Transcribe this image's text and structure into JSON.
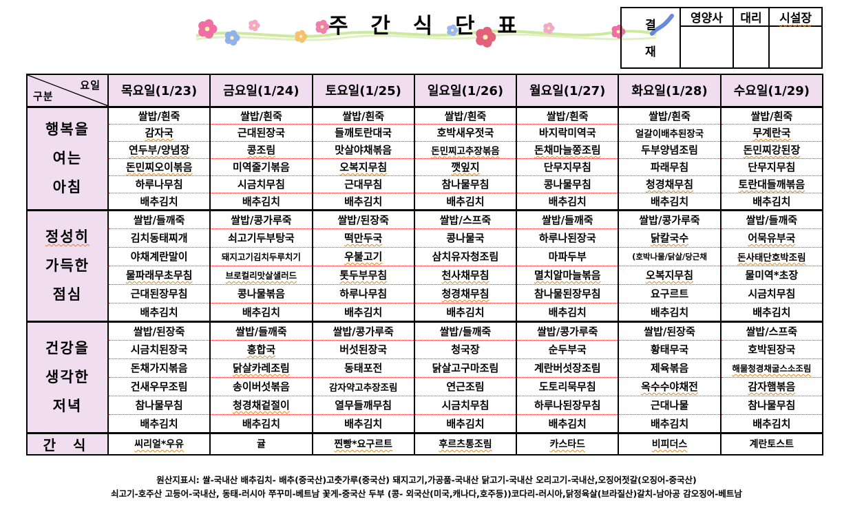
{
  "page": {
    "title": "주 간  식 단 표"
  },
  "approval": {
    "stamp": [
      "결",
      "재"
    ],
    "columns": [
      "영양사",
      "대리",
      "시설장"
    ]
  },
  "menu": {
    "corner": {
      "top": "요일",
      "bottom": "구분"
    },
    "day_headers": [
      "목요일(1/23)",
      "금요일(1/24)",
      "토요일(1/25)",
      "일요일(1/26)",
      "월요일(1/27)",
      "화요일(1/28)",
      "수요일(1/29)"
    ],
    "sections": [
      {
        "label_lines": [
          "행복을",
          "여는",
          "아침"
        ],
        "days": [
          [
            "쌀밥/흰죽",
            "감자국",
            "연두부/양념장",
            "돈민찌오이볶음",
            "하루나무침",
            "배추김치"
          ],
          [
            "쌀밥/흰죽",
            "근대된장국",
            "콩조림",
            "미역줄기볶음",
            "시금치무침",
            "배추김치"
          ],
          [
            "쌀밥/흰죽",
            "들깨토란대국",
            "맛살야채볶음",
            "오복지무침",
            "근대무침",
            "배추김치"
          ],
          [
            "쌀밥/흰죽",
            "호박새우젓국",
            "돈민찌고추장볶음",
            "깻잎지",
            "참나물무침",
            "배추김치"
          ],
          [
            "쌀밥/흰죽",
            "바지락미역국",
            "돈채마늘쫑조림",
            "단무지무침",
            "콩나물무침",
            "배추김치"
          ],
          [
            "쌀밥/흰죽",
            "얼갈이배추된장국",
            "두부양념조림",
            "파래무침",
            "청경채무침",
            "배추김치"
          ],
          [
            "쌀밥/흰죽",
            "무계란국",
            "돈민찌강된장",
            "단무지무침",
            "토란대들깨볶음",
            "배추김치"
          ]
        ]
      },
      {
        "label_lines": [
          "정성히",
          "가득한",
          "점심"
        ],
        "days": [
          [
            "쌀밥/들깨죽",
            "김치동태찌개",
            "야채계란말이",
            "물파래무초무침",
            "근대된장무침",
            "배추김치"
          ],
          [
            "쌀밥/콩가루죽",
            "쇠고기두부탕국",
            "돼지고기김치두루치기",
            "브로컬리맛살샐러드",
            "콩나물볶음",
            "배추김치"
          ],
          [
            "쌀밥/된장죽",
            "떡만두국",
            "우불고기",
            "톳두부무침",
            "하루나무침",
            "배추김치"
          ],
          [
            "쌀밥/스프죽",
            "콩나물국",
            "삼치유자청조림",
            "천사채무침",
            "청경채무침",
            "배추김치"
          ],
          [
            "쌀밥/들깨죽",
            "하루나된장국",
            "마파두부",
            "멸치알마늘볶음",
            "참나물된장무침",
            "배추김치"
          ],
          [
            "쌀밥/콩가루죽",
            "닭칼국수",
            "(호박나물/닭살/당근채",
            "오복지무침",
            "요구르트",
            "배추김치"
          ],
          [
            "쌀밥/들깨죽",
            "어묵유부국",
            "돈사태단호박조림",
            "물미역*초장",
            "시금치무침",
            "배추김치"
          ]
        ]
      },
      {
        "label_lines": [
          "건강을",
          "생각한",
          "저녁"
        ],
        "days": [
          [
            "쌀밥/된장죽",
            "시금치된장국",
            "돈채가지볶음",
            "건새우무조림",
            "참나물무침",
            "배추김치"
          ],
          [
            "쌀밥/들깨죽",
            "홍합국",
            "닭살카레조림",
            "송이버섯볶음",
            "청경채겉절이",
            "배추김치"
          ],
          [
            "쌀밥/콩가루죽",
            "버섯된장국",
            "동태포전",
            "감자약고추장조림",
            "열무들깨무침",
            "배추김치"
          ],
          [
            "쌀밥/들깨죽",
            "청국장",
            "닭살고구마조림",
            "연근조림",
            "시금치무침",
            "배추김치"
          ],
          [
            "쌀밥/콩가루죽",
            "순두부국",
            "계란버섯장조림",
            "도토리묵무침",
            "하루나된장무침",
            "배추김치"
          ],
          [
            "쌀밥/된장죽",
            "황태무국",
            "제육볶음",
            "옥수수야채전",
            "근대나물",
            "배추김치"
          ],
          [
            "쌀밥/스프죽",
            "호박된장국",
            "해물청경채굴스소조림",
            "감자햄볶음",
            "참나물무침",
            "배추김치"
          ]
        ]
      }
    ],
    "snack": {
      "label": "간 식",
      "items": [
        "씨리얼*우유",
        "귤",
        "찐빵*요구르트",
        "후르츠통조림",
        "카스타드",
        "비피더스",
        "계란토스트"
      ]
    }
  },
  "footer": {
    "line1": "원산지표시: 쌀-국내산   배추김치- 배추(중국산)고춧가루(중국산) 돼지고기,가공품-국내산 닭고기-국내산 오리고기-국내산,오징어젓갈(오징어-중국산)",
    "line2": "쇠고기-호주산 고등어-국내산, 동태-러시아  쭈꾸미-베트남  꽃게-중국산  두부 (콩- 외국산(미국,캐나다,호주등))코다리-러시아,닭정육살(브라질산)갈치-남아공 감오징어-베트남"
  },
  "style": {
    "header_bg": "#f0ddf0",
    "grid_color": "#000000",
    "item_divider_color": "#ff2222",
    "squiggle_color": "#e8821e"
  },
  "underlined_items": [
    "시설장",
    "정성히",
    "감자국",
    "연두부/양념장",
    "돈민찌오이볶음",
    "콩조림",
    "오복지무침",
    "돈민찌고추장볶음",
    "깻잎지",
    "돈채마늘쫑조림",
    "청경채무침",
    "무계란국",
    "돈민찌강된장",
    "토란대들깨볶음",
    "물파래무초무침",
    "브로컬리맛살샐러드",
    "떡만두국",
    "우불고기",
    "톳두부무침",
    "천사채무침",
    "멸치알마늘볶음",
    "닭칼국수",
    "어묵유부국",
    "돈사태단호박조림",
    "홍합국",
    "닭살카레조림",
    "청경채겉절이",
    "옥수수야채전",
    "해물청경채굴스소조림",
    "감자햄볶음",
    "씨리얼*우유",
    "찐빵*요구르트",
    "후르츠통조림",
    "카스타드",
    "비피더스"
  ]
}
